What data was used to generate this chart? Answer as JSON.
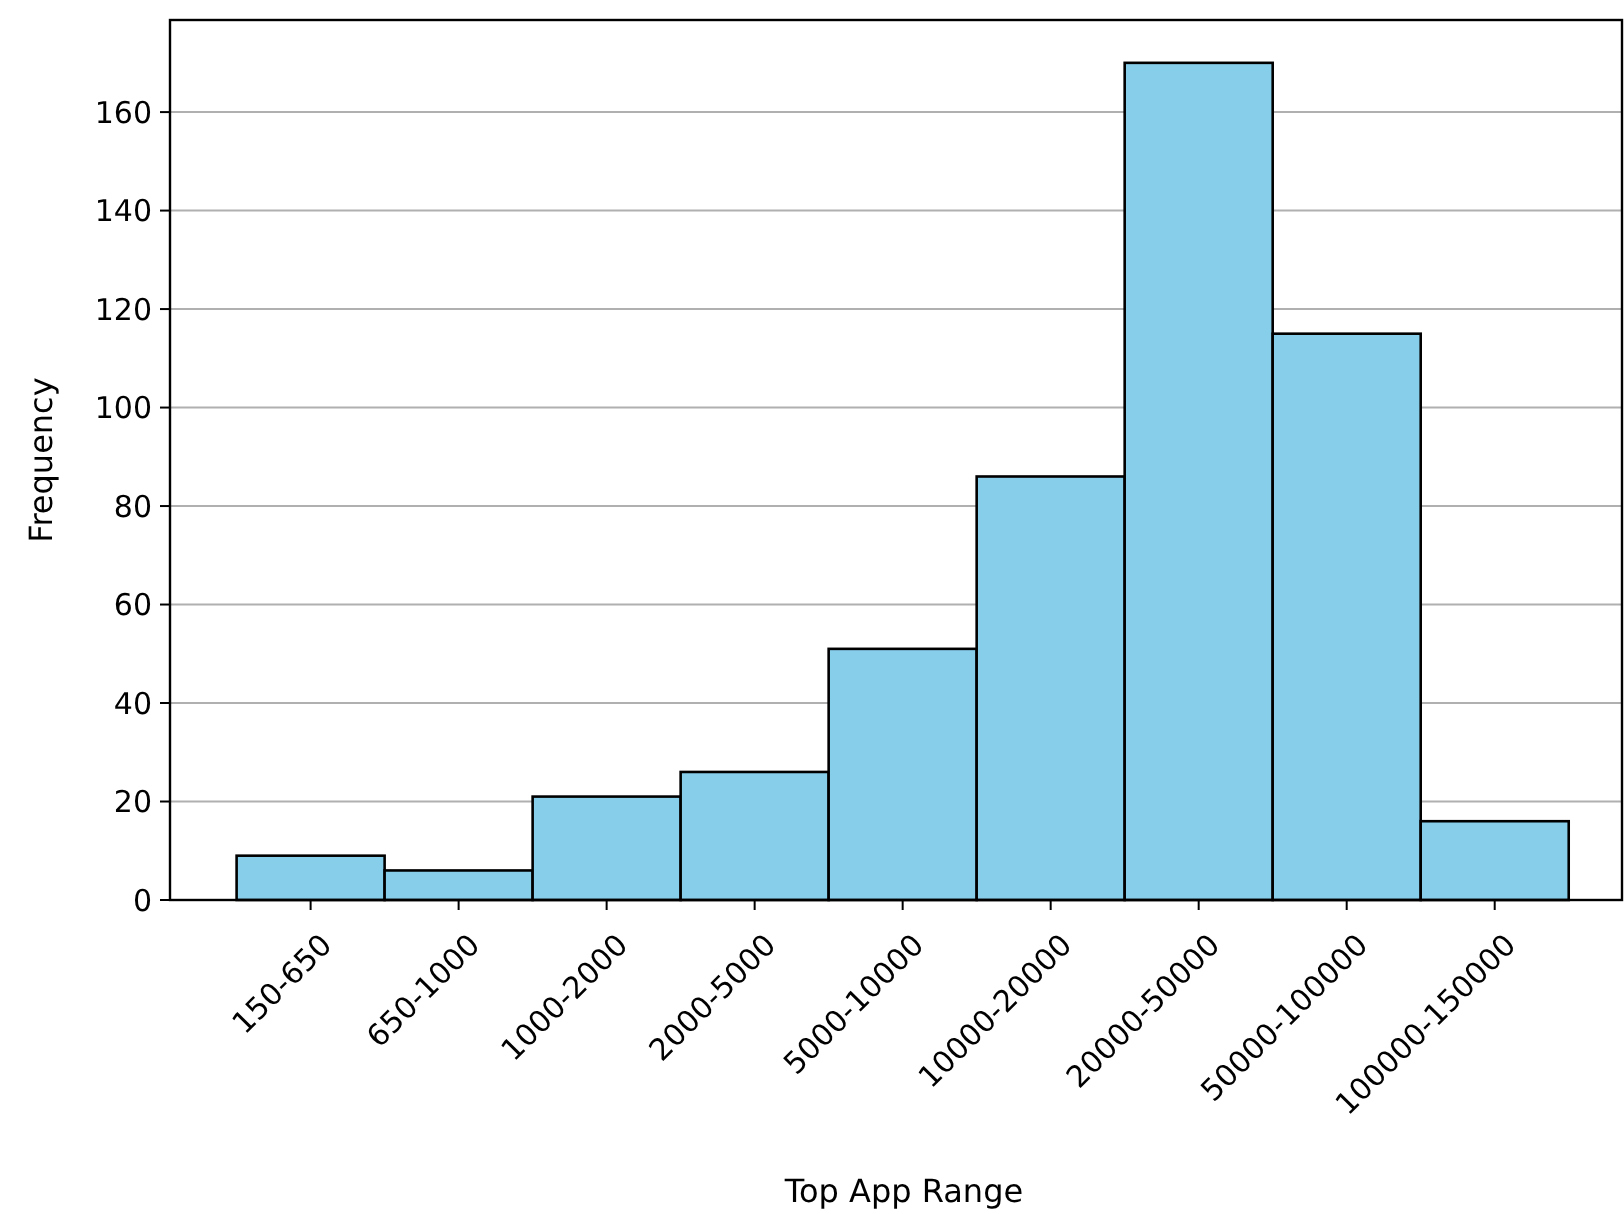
{
  "chart_data": {
    "type": "bar",
    "xlabel": "Top App Range",
    "ylabel": "Frequency",
    "categories": [
      "150-650",
      "650-1000",
      "1000-2000",
      "2000-5000",
      "5000-10000",
      "10000-20000",
      "20000-50000",
      "50000-100000",
      "100000-150000"
    ],
    "values": [
      9,
      6,
      21,
      26,
      51,
      86,
      170,
      115,
      16
    ],
    "color": "#87ceeb",
    "ylim": [
      0,
      178.7
    ],
    "yticks": [
      0,
      20,
      40,
      60,
      80,
      100,
      120,
      140,
      160
    ],
    "grid": "y"
  }
}
